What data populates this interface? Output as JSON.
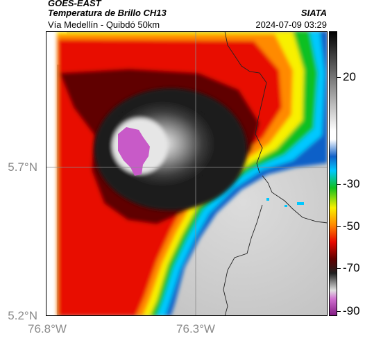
{
  "header": {
    "satellite": "GOES-EAST",
    "product": "Temperatura de Brillo CH13",
    "route": "Vía Medellín - Quibdó 50km",
    "source": "SIATA",
    "datetime": "2024-07-09 03:29"
  },
  "map": {
    "lat_ticks": [
      {
        "value": 5.7,
        "label": "5.7°N"
      },
      {
        "value": 5.2,
        "label": "5.2°N"
      }
    ],
    "lon_ticks": [
      {
        "value": -76.8,
        "label": "76.8°W"
      },
      {
        "value": -76.3,
        "label": "76.3°W"
      }
    ],
    "extent": {
      "lon_min": -76.8,
      "lon_max": -75.89,
      "lat_min": 5.2,
      "lat_max": 6.12
    },
    "colors": {
      "coldest_top": "#c050c0",
      "cold_core": "#1a1a1a",
      "ring_dark_red": "#5a0000",
      "red": "#e00000",
      "orange": "#ff8000",
      "yellow": "#ffff00",
      "green": "#00c000",
      "cyan": "#00c8ff",
      "blue": "#0050c8",
      "clear_sky_gray": "#d0d0d0"
    }
  },
  "colorbar": {
    "min": -92,
    "max": 35,
    "ticks": [
      {
        "value": 20,
        "label": "20"
      },
      {
        "value": -30,
        "label": "-30"
      },
      {
        "value": -50,
        "label": "-50"
      },
      {
        "value": -70,
        "label": "-70"
      },
      {
        "value": -90,
        "label": "-90"
      }
    ]
  }
}
